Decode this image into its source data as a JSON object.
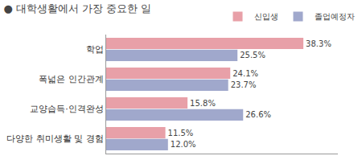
{
  "chart_data": {
    "type": "bar",
    "orientation": "horizontal",
    "title": "● 대학생활에서 가장 중요한 일",
    "categories": [
      "학업",
      "폭넓은 인간관계",
      "교양습득·인격완성",
      "다양한 취미생활 및 경험"
    ],
    "series": [
      {
        "name": "신입생",
        "color": "#e8a0a8",
        "values": [
          38.3,
          24.1,
          15.8,
          11.5
        ],
        "value_labels": [
          "38.3%",
          "24.1%",
          "15.8%",
          "11.5%"
        ]
      },
      {
        "name": "졸업예정자",
        "color": "#a0a8cc",
        "values": [
          25.5,
          23.7,
          26.6,
          12.0
        ],
        "value_labels": [
          "25.5%",
          "23.7%",
          "26.6%",
          "12.0%"
        ]
      }
    ],
    "xlim": [
      0,
      45
    ],
    "data_labels": true,
    "tick_labels": "y",
    "grid": false,
    "legend": "upper right"
  }
}
